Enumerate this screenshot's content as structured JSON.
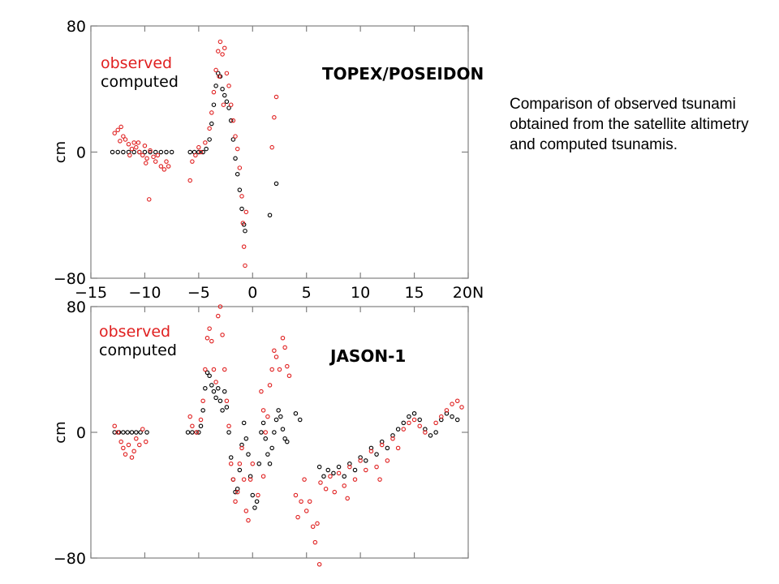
{
  "caption": "Comparison of observed tsunami obtained from the satellite altimetry and computed tsunamis.",
  "colors": {
    "observed": "#e02020",
    "computed": "#000000",
    "axis": "#808080"
  },
  "chart_data": [
    {
      "type": "scatter",
      "panel_label": "TOPEX/POSEIDON",
      "ylabel": "cm",
      "xlim": [
        -15,
        20
      ],
      "ylim": [
        -80,
        80
      ],
      "xticks": [
        -15,
        -10,
        -5,
        0,
        5,
        10,
        15,
        20
      ],
      "xtick_labels": [
        "−15",
        "−10",
        "−5",
        "0",
        "5",
        "10",
        "15",
        "20N"
      ],
      "yticks": [
        80,
        0,
        -80
      ],
      "ytick_labels": [
        "80",
        "0",
        "−80"
      ],
      "legend": {
        "placement": "top-left",
        "entries": [
          "observed",
          "computed"
        ]
      },
      "series": [
        {
          "name": "observed",
          "points": [
            [
              -12.8,
              12
            ],
            [
              -12.5,
              14
            ],
            [
              -12.2,
              16
            ],
            [
              -12.0,
              10
            ],
            [
              -11.8,
              8
            ],
            [
              -11.5,
              5
            ],
            [
              -11.2,
              2
            ],
            [
              -11.0,
              6
            ],
            [
              -10.8,
              3
            ],
            [
              -10.5,
              0
            ],
            [
              -10.2,
              -2
            ],
            [
              -10.0,
              4
            ],
            [
              -9.8,
              -4
            ],
            [
              -9.5,
              1
            ],
            [
              -9.2,
              -3
            ],
            [
              -9.0,
              -6
            ],
            [
              -8.8,
              -2
            ],
            [
              -8.5,
              -9
            ],
            [
              -8.2,
              -11
            ],
            [
              -8.0,
              -6
            ],
            [
              -7.8,
              -9
            ],
            [
              -9.6,
              -30
            ],
            [
              -12.3,
              7
            ],
            [
              -11.4,
              -2
            ],
            [
              -10.6,
              6
            ],
            [
              -9.9,
              -7
            ],
            [
              -5.8,
              -18
            ],
            [
              -5.6,
              -6
            ],
            [
              -5.3,
              -2
            ],
            [
              -5.0,
              3
            ],
            [
              -4.8,
              0
            ],
            [
              -4.4,
              6
            ],
            [
              -4.0,
              15
            ],
            [
              -3.8,
              25
            ],
            [
              -3.6,
              38
            ],
            [
              -3.4,
              52
            ],
            [
              -3.2,
              64
            ],
            [
              -3.0,
              70
            ],
            [
              -2.8,
              62
            ],
            [
              -2.6,
              66
            ],
            [
              -2.4,
              50
            ],
            [
              -2.2,
              42
            ],
            [
              -2.0,
              30
            ],
            [
              -1.8,
              20
            ],
            [
              -1.6,
              10
            ],
            [
              -1.4,
              2
            ],
            [
              -1.2,
              -10
            ],
            [
              -1.0,
              -28
            ],
            [
              -0.9,
              -45
            ],
            [
              -0.8,
              -60
            ],
            [
              -0.7,
              -72
            ],
            [
              -0.6,
              -38
            ],
            [
              1.8,
              3
            ],
            [
              2.0,
              22
            ],
            [
              2.2,
              35
            ],
            [
              -3.1,
              48
            ],
            [
              -2.7,
              30
            ]
          ]
        },
        {
          "name": "computed",
          "points": [
            [
              -13.0,
              0
            ],
            [
              -12.5,
              0
            ],
            [
              -12.0,
              0
            ],
            [
              -11.5,
              0
            ],
            [
              -11.0,
              0
            ],
            [
              -10.5,
              0
            ],
            [
              -10.0,
              0
            ],
            [
              -9.5,
              0
            ],
            [
              -9.0,
              0
            ],
            [
              -8.5,
              0
            ],
            [
              -8.0,
              0
            ],
            [
              -7.5,
              0
            ],
            [
              -5.8,
              0
            ],
            [
              -5.4,
              0
            ],
            [
              -5.0,
              0
            ],
            [
              -4.6,
              0
            ],
            [
              -4.3,
              2
            ],
            [
              -4.0,
              8
            ],
            [
              -3.8,
              18
            ],
            [
              -3.6,
              30
            ],
            [
              -3.4,
              42
            ],
            [
              -3.2,
              50
            ],
            [
              -3.0,
              48
            ],
            [
              -2.8,
              40
            ],
            [
              -2.6,
              36
            ],
            [
              -2.4,
              32
            ],
            [
              -2.2,
              28
            ],
            [
              -2.0,
              20
            ],
            [
              -1.8,
              8
            ],
            [
              -1.6,
              -4
            ],
            [
              -1.4,
              -14
            ],
            [
              -1.2,
              -24
            ],
            [
              -1.0,
              -36
            ],
            [
              -0.8,
              -46
            ],
            [
              -0.7,
              -50
            ],
            [
              1.6,
              -40
            ],
            [
              2.2,
              -20
            ]
          ]
        }
      ]
    },
    {
      "type": "scatter",
      "panel_label": "JASON-1",
      "ylabel": "cm",
      "xlim": [
        -15,
        20
      ],
      "ylim": [
        -80,
        80
      ],
      "yticks": [
        80,
        0,
        -80
      ],
      "ytick_labels": [
        "80",
        "0",
        "−80"
      ],
      "legend": {
        "placement": "top-left",
        "entries": [
          "observed",
          "computed"
        ]
      },
      "series": [
        {
          "name": "observed",
          "points": [
            [
              -12.8,
              4
            ],
            [
              -12.5,
              0
            ],
            [
              -12.2,
              -6
            ],
            [
              -12.0,
              -10
            ],
            [
              -11.8,
              -14
            ],
            [
              -11.5,
              -8
            ],
            [
              -11.2,
              -16
            ],
            [
              -11.0,
              -12
            ],
            [
              -10.8,
              -4
            ],
            [
              -10.5,
              -8
            ],
            [
              -10.2,
              2
            ],
            [
              -9.9,
              -6
            ],
            [
              -5.8,
              10
            ],
            [
              -5.6,
              4
            ],
            [
              -5.2,
              0
            ],
            [
              -4.8,
              8
            ],
            [
              -4.6,
              20
            ],
            [
              -4.4,
              40
            ],
            [
              -4.2,
              60
            ],
            [
              -4.0,
              66
            ],
            [
              -3.8,
              58
            ],
            [
              -3.6,
              40
            ],
            [
              -3.4,
              32
            ],
            [
              -3.2,
              74
            ],
            [
              -3.0,
              80
            ],
            [
              -2.8,
              62
            ],
            [
              -2.6,
              40
            ],
            [
              -2.4,
              20
            ],
            [
              -2.2,
              4
            ],
            [
              -2.0,
              -20
            ],
            [
              -1.8,
              -30
            ],
            [
              -1.6,
              -44
            ],
            [
              -1.4,
              -38
            ],
            [
              -1.2,
              -20
            ],
            [
              -1.0,
              -10
            ],
            [
              -0.8,
              -30
            ],
            [
              -0.6,
              -50
            ],
            [
              -0.4,
              -56
            ],
            [
              -0.2,
              -30
            ],
            [
              0.0,
              -20
            ],
            [
              0.5,
              -40
            ],
            [
              1.0,
              -28
            ],
            [
              1.2,
              0
            ],
            [
              1.4,
              10
            ],
            [
              1.6,
              30
            ],
            [
              1.8,
              40
            ],
            [
              2.0,
              52
            ],
            [
              2.2,
              48
            ],
            [
              2.5,
              40
            ],
            [
              2.8,
              60
            ],
            [
              3.0,
              54
            ],
            [
              3.2,
              42
            ],
            [
              3.4,
              36
            ],
            [
              0.8,
              26
            ],
            [
              1.0,
              14
            ],
            [
              4.0,
              -40
            ],
            [
              4.2,
              -54
            ],
            [
              4.5,
              -44
            ],
            [
              4.8,
              -30
            ],
            [
              5.0,
              -50
            ],
            [
              5.3,
              -44
            ],
            [
              5.6,
              -60
            ],
            [
              5.8,
              -70
            ],
            [
              6.0,
              -58
            ],
            [
              6.3,
              -32
            ],
            [
              6.8,
              -36
            ],
            [
              7.2,
              -28
            ],
            [
              7.6,
              -38
            ],
            [
              8.0,
              -26
            ],
            [
              8.5,
              -34
            ],
            [
              9.0,
              -22
            ],
            [
              9.5,
              -30
            ],
            [
              10.0,
              -18
            ],
            [
              10.5,
              -24
            ],
            [
              11.0,
              -12
            ],
            [
              11.5,
              -22
            ],
            [
              12.0,
              -8
            ],
            [
              12.5,
              -18
            ],
            [
              13.0,
              -4
            ],
            [
              13.5,
              -10
            ],
            [
              14.0,
              2
            ],
            [
              14.5,
              6
            ],
            [
              15.0,
              8
            ],
            [
              15.5,
              4
            ],
            [
              16.0,
              0
            ],
            [
              17.0,
              6
            ],
            [
              17.5,
              10
            ],
            [
              18.0,
              14
            ],
            [
              18.5,
              18
            ],
            [
              19.0,
              20
            ],
            [
              19.4,
              16
            ],
            [
              6.2,
              -84
            ],
            [
              11.8,
              -30
            ],
            [
              8.8,
              -42
            ]
          ]
        },
        {
          "name": "computed",
          "points": [
            [
              -12.8,
              0
            ],
            [
              -12.4,
              0
            ],
            [
              -12.0,
              0
            ],
            [
              -11.6,
              0
            ],
            [
              -11.2,
              0
            ],
            [
              -10.8,
              0
            ],
            [
              -10.4,
              0
            ],
            [
              -9.8,
              0
            ],
            [
              -6.0,
              0
            ],
            [
              -5.6,
              0
            ],
            [
              -5.2,
              0
            ],
            [
              -5.0,
              0
            ],
            [
              -4.8,
              4
            ],
            [
              -4.6,
              14
            ],
            [
              -4.4,
              28
            ],
            [
              -4.2,
              38
            ],
            [
              -4.0,
              36
            ],
            [
              -3.8,
              30
            ],
            [
              -3.6,
              26
            ],
            [
              -3.4,
              22
            ],
            [
              -3.2,
              28
            ],
            [
              -3.0,
              20
            ],
            [
              -2.8,
              14
            ],
            [
              -2.6,
              26
            ],
            [
              -2.4,
              16
            ],
            [
              -2.2,
              0
            ],
            [
              -2.0,
              -16
            ],
            [
              -1.8,
              -30
            ],
            [
              -1.6,
              -38
            ],
            [
              -1.4,
              -36
            ],
            [
              -1.2,
              -24
            ],
            [
              -1.0,
              -8
            ],
            [
              -0.8,
              6
            ],
            [
              -0.6,
              -4
            ],
            [
              -0.4,
              -14
            ],
            [
              -0.2,
              -28
            ],
            [
              0.0,
              -40
            ],
            [
              0.2,
              -48
            ],
            [
              0.4,
              -44
            ],
            [
              0.6,
              -20
            ],
            [
              0.8,
              0
            ],
            [
              1.0,
              6
            ],
            [
              1.2,
              -4
            ],
            [
              1.4,
              -14
            ],
            [
              1.6,
              -20
            ],
            [
              1.8,
              -10
            ],
            [
              2.0,
              0
            ],
            [
              2.2,
              8
            ],
            [
              2.4,
              14
            ],
            [
              2.6,
              10
            ],
            [
              2.8,
              2
            ],
            [
              3.0,
              -4
            ],
            [
              3.2,
              -6
            ],
            [
              4.0,
              12
            ],
            [
              4.4,
              8
            ],
            [
              6.2,
              -22
            ],
            [
              6.6,
              -28
            ],
            [
              7.0,
              -24
            ],
            [
              7.5,
              -26
            ],
            [
              8.0,
              -22
            ],
            [
              8.5,
              -28
            ],
            [
              9.0,
              -20
            ],
            [
              9.5,
              -24
            ],
            [
              10.0,
              -16
            ],
            [
              10.5,
              -18
            ],
            [
              11.0,
              -10
            ],
            [
              11.5,
              -14
            ],
            [
              12.0,
              -6
            ],
            [
              12.5,
              -10
            ],
            [
              13.0,
              -2
            ],
            [
              13.5,
              2
            ],
            [
              14.0,
              6
            ],
            [
              14.5,
              10
            ],
            [
              15.0,
              12
            ],
            [
              15.5,
              8
            ],
            [
              16.0,
              2
            ],
            [
              16.5,
              -2
            ],
            [
              17.0,
              0
            ],
            [
              17.5,
              8
            ],
            [
              18.0,
              12
            ],
            [
              18.5,
              10
            ],
            [
              19.0,
              8
            ]
          ]
        }
      ]
    }
  ]
}
